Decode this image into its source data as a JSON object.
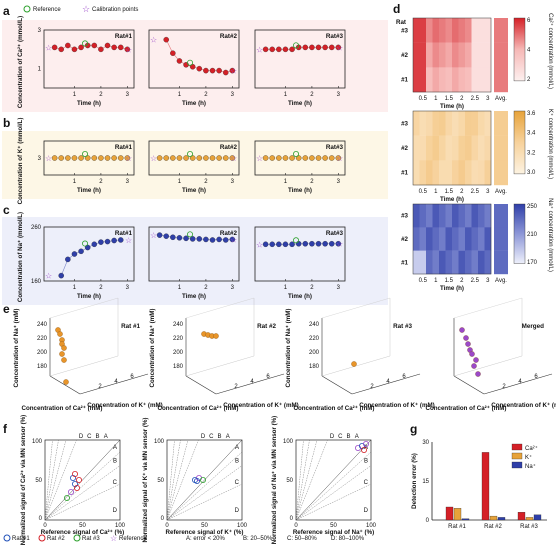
{
  "colors": {
    "ca": "#d42027",
    "k": "#e7a33a",
    "na": "#2f3fa8",
    "ref": "#2ca02c",
    "cal": "#9b49c9",
    "bg_ca": "#fdeeee",
    "bg_k": "#fdf7e6",
    "bg_na": "#edeffa"
  },
  "legend": {
    "reference": "Reference",
    "calibration": "Calibration points"
  },
  "panel_letters": {
    "a": "a",
    "b": "b",
    "c": "c",
    "d": "d",
    "e": "e",
    "f": "f",
    "g": "g"
  },
  "rat_labels": [
    "Rat#1",
    "Rat#2",
    "Rat#3"
  ],
  "axis": {
    "time": "Time (h)",
    "time_ticks": [
      "1",
      "2",
      "3"
    ],
    "ca_y": "Concentration of Ca²⁺ (mmol/L)",
    "k_y": "Concentration of K⁺ (mmol/L)",
    "na_y": "Concentration of Na⁺ (mmol/L)",
    "ca_ticks": [
      "3",
      "1"
    ],
    "k_ticks": [
      "3"
    ],
    "na_ticks": [
      "260",
      "160"
    ]
  },
  "heatmap": {
    "rows": [
      "#3",
      "#2",
      "#1"
    ],
    "rat_title": "Rat",
    "x_ticks": [
      "0.5",
      "1",
      "1.5",
      "2",
      "2.5",
      "3"
    ],
    "avg": "Avg.",
    "xlabel": "Time (h)",
    "ca": {
      "label": "Ca²⁺ concentration (mmol/L)",
      "ticks": [
        "6",
        "4",
        "2"
      ]
    },
    "k": {
      "label": "K⁺ concentration (mmol/L)",
      "ticks": [
        "3.6",
        "3.4",
        "3.2",
        "3.0"
      ]
    },
    "na": {
      "label": "Na⁺ concentration (mmol/L)",
      "ticks": [
        "250",
        "210",
        "170"
      ]
    }
  },
  "panel_e": {
    "titles": [
      "Rat #1",
      "Rat #2",
      "Rat #3",
      "Merged"
    ],
    "z_label": "Concentration of Na⁺ (mM)",
    "x_label": "Concentration of Ca²⁺ (mM)",
    "y_label": "Concentration of K⁺ (mM)",
    "z_ticks": [
      "240",
      "220",
      "200",
      "180"
    ],
    "x_ticks": [
      "2",
      "4",
      "6"
    ],
    "y_ticks": [
      "2",
      "4",
      "6"
    ]
  },
  "panel_f": {
    "ylabels": [
      "Normalized signal of Ca²⁺ via MN sensor (%)",
      "Normalized signal of K⁺ via MN sensor (%)",
      "Normalized signal of Na⁺ via MN sensor (%)"
    ],
    "xlabels": [
      "Reference signal of Ca²⁺ (%)",
      "Reference signal of K⁺ (%)",
      "Reference signal of Na⁺ (%)"
    ],
    "ticks": [
      "0",
      "50",
      "100"
    ],
    "zones": [
      "A",
      "B",
      "C",
      "D"
    ],
    "legend": [
      "Rat #1",
      "Rat #2",
      "Rat #3",
      "Reference"
    ],
    "zone_desc": [
      "A: error < 20%",
      "B: 20–50%",
      "C: 50–80%",
      "D: 80–100%"
    ]
  },
  "chart_data": [
    {
      "type": "scatter",
      "title": "Ca²⁺ Rat#1",
      "x": [
        0.25,
        0.5,
        0.75,
        1,
        1.25,
        1.5,
        1.75,
        2,
        2.25,
        2.5,
        2.75,
        3
      ],
      "y": [
        2.1,
        2.0,
        2.2,
        2.0,
        2.1,
        2.2,
        2.2,
        2.0,
        2.2,
        2.1,
        2.1,
        2.0
      ]
    },
    {
      "type": "scatter",
      "title": "Ca²⁺ Rat#2",
      "x": [
        0.5,
        0.75,
        1,
        1.25,
        1.5,
        1.75,
        2,
        2.25,
        2.5,
        2.75,
        3
      ],
      "y": [
        2.5,
        1.8,
        1.4,
        1.2,
        1.1,
        1.0,
        0.9,
        0.9,
        0.9,
        0.8,
        0.9
      ]
    },
    {
      "type": "scatter",
      "title": "Ca²⁺ Rat#3",
      "x": [
        0.25,
        0.5,
        0.75,
        1,
        1.25,
        1.5,
        1.75,
        2,
        2.25,
        2.5,
        2.75,
        3
      ],
      "y": [
        2.0,
        2.0,
        2.0,
        2.0,
        2.0,
        2.1,
        2.1,
        2.1,
        2.1,
        2.1,
        2.1,
        2.1
      ]
    },
    {
      "type": "scatter",
      "title": "K⁺ Rat#1",
      "x": [
        0.25,
        0.5,
        0.75,
        1,
        1.25,
        1.5,
        1.75,
        2,
        2.25,
        2.5,
        2.75,
        3
      ],
      "y": [
        3.0,
        3.0,
        3.0,
        3.0,
        3.0,
        3.0,
        3.0,
        3.0,
        3.0,
        3.0,
        3.0,
        3.0
      ]
    },
    {
      "type": "scatter",
      "title": "K⁺ Rat#2",
      "x": [
        0.25,
        0.5,
        0.75,
        1,
        1.25,
        1.5,
        1.75,
        2,
        2.25,
        2.5,
        2.75,
        3
      ],
      "y": [
        3.0,
        3.0,
        3.0,
        3.0,
        3.0,
        3.0,
        3.0,
        3.0,
        3.0,
        3.0,
        3.0,
        3.0
      ]
    },
    {
      "type": "scatter",
      "title": "K⁺ Rat#3",
      "x": [
        0.25,
        0.5,
        0.75,
        1,
        1.25,
        1.5,
        1.75,
        2,
        2.25,
        2.5,
        2.75,
        3
      ],
      "y": [
        3.0,
        3.0,
        3.0,
        3.0,
        3.0,
        3.0,
        3.0,
        3.0,
        3.0,
        3.0,
        3.0,
        3.0
      ]
    },
    {
      "type": "scatter",
      "title": "Na⁺ Rat#1",
      "x": [
        0.5,
        0.75,
        1,
        1.25,
        1.5,
        1.75,
        2,
        2.25,
        2.5,
        2.75
      ],
      "y": [
        170,
        200,
        210,
        215,
        222,
        228,
        232,
        233,
        235,
        236
      ]
    },
    {
      "type": "scatter",
      "title": "Na⁺ Rat#2",
      "x": [
        0.25,
        0.5,
        0.75,
        1,
        1.25,
        1.5,
        1.75,
        2,
        2.25,
        2.5,
        2.75,
        3
      ],
      "y": [
        245,
        243,
        241,
        240,
        239,
        238,
        238,
        237,
        236,
        237,
        236,
        237
      ]
    },
    {
      "type": "scatter",
      "title": "Na⁺ Rat#3",
      "x": [
        0.25,
        0.5,
        0.75,
        1,
        1.25,
        1.5,
        1.75,
        2,
        2.25,
        2.5,
        2.75,
        3
      ],
      "y": [
        228,
        228,
        228,
        228,
        228,
        229,
        229,
        229,
        229,
        229,
        229,
        229
      ]
    },
    {
      "type": "bar",
      "title": "Detection error (%)",
      "categories": [
        "Rat #1",
        "Rat #2",
        "Rat #3"
      ],
      "series": [
        {
          "name": "Ca²⁺",
          "values": [
            5,
            26,
            3
          ]
        },
        {
          "name": "K⁺",
          "values": [
            4.5,
            1.5,
            1
          ]
        },
        {
          "name": "Na⁺",
          "values": [
            0.5,
            1,
            2
          ]
        }
      ],
      "ylabel": "Detection error (%)",
      "ylim": [
        0,
        30
      ],
      "y_ticks": [
        "0",
        "15",
        "30"
      ]
    }
  ]
}
